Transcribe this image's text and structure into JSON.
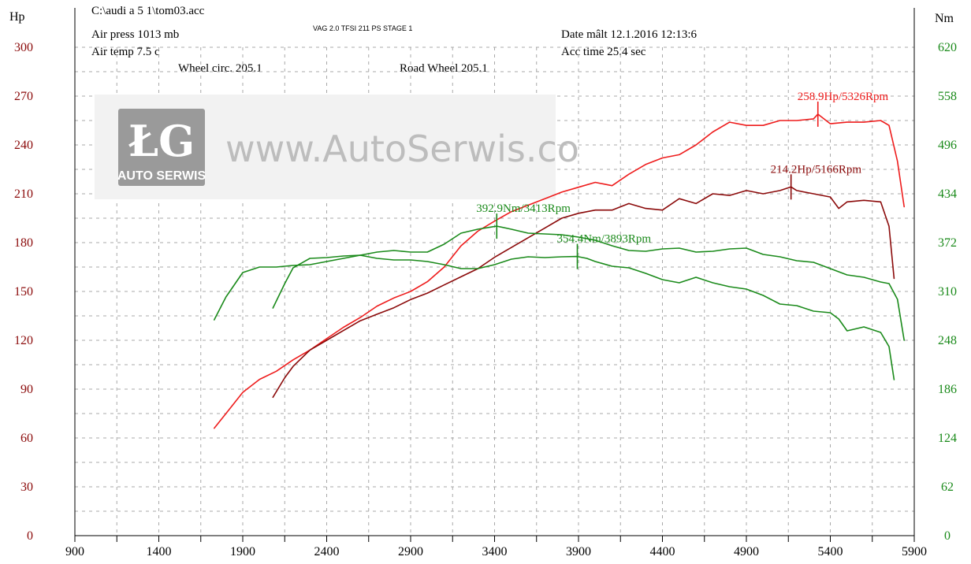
{
  "header": {
    "file": "C:\\audi a 5 1\\tom03.acc",
    "subtitle": "VAG 2.0 TFSI 211 PS   STAGE 1",
    "air_press": "Air press  1013 mb",
    "air_temp": "Air temp    7.5 c",
    "date": "Date mâlt 12.1.2016 12:13:6",
    "acc_time": "Acc time   25.4 sec",
    "wheel_circ": "Wheel circ. 205.1",
    "road_wheel": "Road Wheel 205.1"
  },
  "watermark": {
    "logo_letters": "ŁG",
    "logo_text": "AUTO SERWIS",
    "url": "www.AutoSerwis.co"
  },
  "chart_data": {
    "type": "line",
    "xlabel": "",
    "ylabel_left": "Hp",
    "ylabel_right": "Nm",
    "xlim": [
      900,
      5900
    ],
    "ylim_left": [
      0,
      300
    ],
    "ylim_right": [
      0,
      620
    ],
    "x_ticks": [
      "900",
      "1400",
      "1900",
      "2400",
      "2900",
      "3400",
      "3900",
      "4400",
      "4900",
      "5400",
      "5900"
    ],
    "y_ticks_left": [
      "300",
      "270",
      "240",
      "210",
      "180",
      "150",
      "120",
      "90",
      "60",
      "30",
      "0"
    ],
    "y_ticks_right": [
      "620",
      "558",
      "496",
      "434",
      "372",
      "310",
      "248",
      "186",
      "124",
      "62",
      "0"
    ],
    "grid": true,
    "colors": {
      "stage1_power": "#ee1c1c",
      "stock_power": "#8b0a0a",
      "torque": "#1a8a1a",
      "left_axis_text": "#8b0a0a",
      "right_axis_text": "#1a8a1a"
    },
    "series": [
      {
        "axis": "left",
        "color": "#ee1c1c",
        "x": [
          1730,
          1800,
          1900,
          2000,
          2100,
          2200,
          2300,
          2400,
          2500,
          2600,
          2700,
          2800,
          2900,
          3000,
          3100,
          3200,
          3300,
          3413,
          3500,
          3600,
          3700,
          3800,
          3900,
          4000,
          4100,
          4200,
          4300,
          4400,
          4500,
          4600,
          4700,
          4800,
          4900,
          5000,
          5100,
          5200,
          5300,
          5326,
          5400,
          5500,
          5600,
          5700,
          5750,
          5800,
          5840
        ],
        "y": [
          66,
          75,
          88,
          96,
          101,
          108,
          114,
          121,
          128,
          134,
          141,
          146,
          150,
          156,
          165,
          178,
          187,
          194,
          199,
          203,
          207,
          211,
          214,
          217,
          215,
          222,
          228,
          232,
          234,
          240,
          248,
          254,
          252,
          252,
          255,
          255,
          256,
          258.9,
          253,
          254,
          254,
          255,
          252,
          230,
          202
        ]
      },
      {
        "axis": "left",
        "color": "#8b0a0a",
        "x": [
          2080,
          2150,
          2200,
          2300,
          2400,
          2500,
          2600,
          2700,
          2800,
          2900,
          3000,
          3100,
          3200,
          3300,
          3400,
          3500,
          3600,
          3700,
          3800,
          3900,
          4000,
          4100,
          4200,
          4300,
          4400,
          4500,
          4600,
          4700,
          4800,
          4900,
          5000,
          5100,
          5166,
          5200,
          5300,
          5400,
          5450,
          5500,
          5600,
          5700,
          5750,
          5780
        ],
        "y": [
          85,
          97,
          104,
          114,
          120,
          126,
          132,
          136,
          140,
          145,
          149,
          154,
          159,
          164,
          171,
          177,
          183,
          189,
          195,
          198,
          200,
          200,
          204,
          201,
          200,
          207,
          204,
          210,
          209,
          212,
          210,
          212,
          214.2,
          212,
          210,
          208,
          201,
          205,
          206,
          205,
          190,
          158
        ]
      },
      {
        "axis": "right",
        "color": "#1a8a1a",
        "x": [
          1730,
          1800,
          1900,
          2000,
          2100,
          2200,
          2300,
          2400,
          2500,
          2600,
          2700,
          2800,
          2900,
          3000,
          3100,
          3200,
          3300,
          3413,
          3500,
          3600,
          3700,
          3800,
          3900,
          4000,
          4100,
          4200,
          4300,
          4400,
          4500,
          4600,
          4700,
          4800,
          4900,
          5000,
          5100,
          5200,
          5300,
          5400,
          5500,
          5600,
          5700,
          5750,
          5800,
          5840
        ],
        "y": [
          274,
          303,
          334,
          341,
          341,
          343,
          344,
          348,
          352,
          356,
          360,
          362,
          360,
          360,
          370,
          384,
          389,
          392.9,
          389,
          384,
          383,
          382,
          379,
          375,
          368,
          362,
          361,
          364,
          365,
          360,
          361,
          364,
          365,
          357,
          354,
          349,
          347,
          339,
          331,
          328,
          322,
          320,
          300,
          248
        ]
      },
      {
        "axis": "right",
        "color": "#1a8a1a",
        "x": [
          2080,
          2150,
          2200,
          2300,
          2400,
          2500,
          2600,
          2700,
          2800,
          2900,
          3000,
          3100,
          3200,
          3300,
          3400,
          3500,
          3600,
          3700,
          3800,
          3893,
          3950,
          4000,
          4100,
          4200,
          4300,
          4400,
          4500,
          4600,
          4700,
          4800,
          4900,
          5000,
          5100,
          5200,
          5300,
          5400,
          5450,
          5500,
          5600,
          5700,
          5750,
          5780
        ],
        "y": [
          289,
          320,
          340,
          352,
          353,
          355,
          356,
          352,
          350,
          350,
          348,
          344,
          339,
          339,
          344,
          351,
          354,
          353,
          354,
          354.4,
          352,
          348,
          342,
          340,
          333,
          325,
          321,
          328,
          321,
          316,
          313,
          305,
          294,
          292,
          285,
          283,
          275,
          260,
          265,
          258,
          240,
          198
        ]
      }
    ],
    "annotations": [
      {
        "text": "258.9Hp/5326Rpm",
        "x": 5326,
        "y": 258.9,
        "axis": "left",
        "color": "#ee1c1c"
      },
      {
        "text": "214.2Hp/5166Rpm",
        "x": 5166,
        "y": 214.2,
        "axis": "left",
        "color": "#8b0a0a"
      },
      {
        "text": "392.9Nm/3413Rpm",
        "x": 3413,
        "y": 392.9,
        "axis": "right",
        "color": "#1a8a1a"
      },
      {
        "text": "354.4Nm/3893Rpm",
        "x": 3893,
        "y": 354.4,
        "axis": "right",
        "color": "#1a8a1a"
      }
    ]
  }
}
